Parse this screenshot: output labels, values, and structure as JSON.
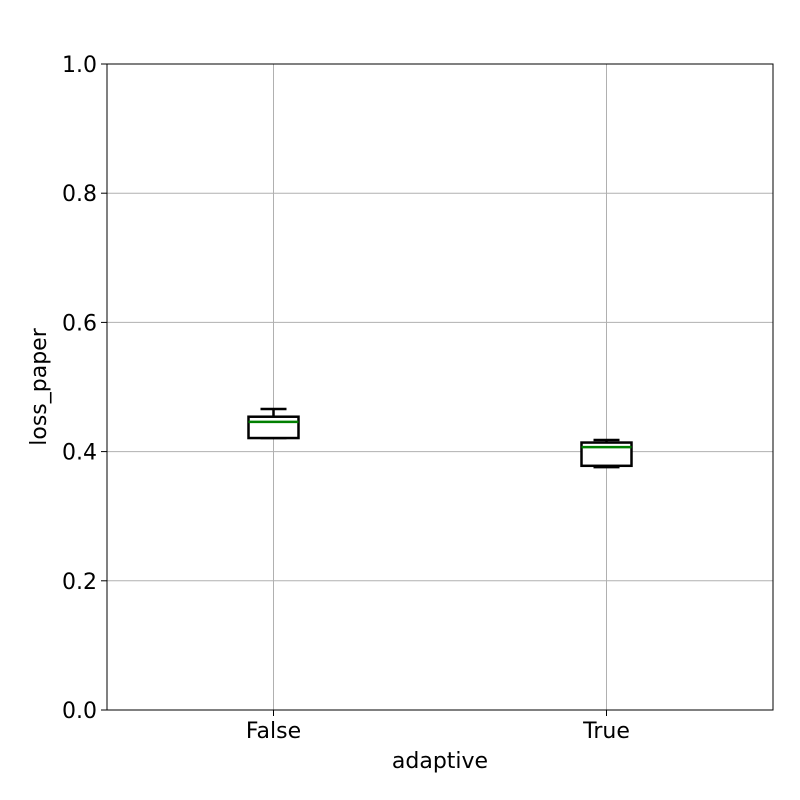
{
  "chart_data": {
    "type": "box",
    "title": "",
    "xlabel": "adaptive",
    "ylabel": "loss_paper",
    "ylim": [
      0,
      1
    ],
    "yticks": [
      0.0,
      0.2,
      0.4,
      0.6,
      0.8,
      1.0
    ],
    "ytick_labels": [
      "0.0",
      "0.2",
      "0.4",
      "0.6",
      "0.8",
      "1.0"
    ],
    "grid": true,
    "categories": [
      "False",
      "True"
    ],
    "boxes": [
      {
        "category": "False",
        "whisker_low": 0.421,
        "q1": 0.421,
        "median": 0.446,
        "q3": 0.454,
        "whisker_high": 0.466
      },
      {
        "category": "True",
        "whisker_low": 0.376,
        "q1": 0.378,
        "median": 0.407,
        "q3": 0.414,
        "whisker_high": 0.418
      }
    ],
    "colors": {
      "box": "#000000",
      "median": "#008000",
      "grid": "#b0b0b0",
      "axes": "#000000"
    }
  }
}
